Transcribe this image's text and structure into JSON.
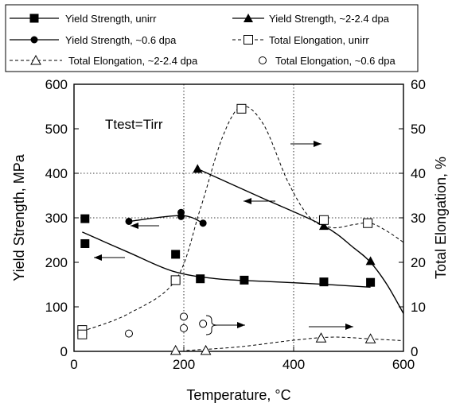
{
  "chart_data": {
    "type": "scatter",
    "xlabel": "Temperature, °C",
    "ylabel": "Yield Strength, MPa",
    "y2label": "Total Elongation, %",
    "xlim": [
      0,
      600
    ],
    "ylim": [
      0,
      600
    ],
    "y2lim": [
      0,
      60
    ],
    "xticks": [
      0,
      200,
      400,
      600
    ],
    "yticks": [
      0,
      100,
      200,
      300,
      400,
      500,
      600
    ],
    "y2ticks": [
      0,
      10,
      20,
      30,
      40,
      50,
      60
    ],
    "grid": "dotted vertical at 200 and 400; horizontal at 300 and 400",
    "annotation": "Ttest=Tirr",
    "legend": [
      {
        "id": "ys_unirr",
        "label": "Yield Strength, unirr"
      },
      {
        "id": "ys_2dpa",
        "label": "Yield Strength, ~2-2.4 dpa"
      },
      {
        "id": "ys_06dpa",
        "label": "Yield Strength, ~0.6 dpa"
      },
      {
        "id": "te_unirr",
        "label": "Total Elongation, unirr"
      },
      {
        "id": "te_2dpa",
        "label": "Total Elongation, ~2-2.4 dpa"
      },
      {
        "id": "te_06dpa",
        "label": "Total Elongation, ~0.6 dpa"
      }
    ],
    "series": [
      {
        "id": "ys_unirr",
        "axis": "left",
        "marker": "filled-square",
        "line": "solid",
        "points": [
          [
            20,
            298
          ],
          [
            20,
            242
          ],
          [
            185,
            218
          ],
          [
            230,
            163
          ],
          [
            310,
            160
          ],
          [
            455,
            156
          ],
          [
            540,
            155
          ]
        ],
        "fit": [
          [
            15,
            268
          ],
          [
            100,
            222
          ],
          [
            180,
            180
          ],
          [
            260,
            163
          ],
          [
            350,
            157
          ],
          [
            450,
            151
          ],
          [
            540,
            144
          ]
        ]
      },
      {
        "id": "ys_2dpa",
        "axis": "left",
        "marker": "filled-triangle",
        "line": "solid",
        "points": [
          [
            225,
            410
          ],
          [
            455,
            282
          ],
          [
            540,
            203
          ]
        ],
        "fit": [
          [
            225,
            410
          ],
          [
            340,
            346
          ],
          [
            455,
            282
          ],
          [
            510,
            232
          ],
          [
            540,
            200
          ],
          [
            570,
            150
          ],
          [
            600,
            85
          ]
        ]
      },
      {
        "id": "ys_06dpa",
        "axis": "left",
        "marker": "filled-circle",
        "line": "solid",
        "points": [
          [
            100,
            292
          ],
          [
            195,
            312
          ],
          [
            195,
            303
          ],
          [
            235,
            288
          ]
        ],
        "fit": [
          [
            100,
            292
          ],
          [
            195,
            305
          ],
          [
            235,
            288
          ]
        ]
      },
      {
        "id": "te_unirr",
        "axis": "right",
        "marker": "open-square",
        "line": "dashed",
        "points": [
          [
            15,
            4.8
          ],
          [
            15,
            3.8
          ],
          [
            185,
            16
          ],
          [
            305,
            54.5
          ],
          [
            455,
            29.5
          ],
          [
            535,
            28.8
          ]
        ],
        "fit": [
          [
            15,
            4.5
          ],
          [
            100,
            8.5
          ],
          [
            185,
            16
          ],
          [
            230,
            32
          ],
          [
            270,
            48
          ],
          [
            305,
            55
          ],
          [
            345,
            51
          ],
          [
            390,
            38
          ],
          [
            430,
            30
          ],
          [
            470,
            27.8
          ],
          [
            510,
            28.5
          ],
          [
            540,
            28.8
          ],
          [
            570,
            27
          ],
          [
            600,
            24.5
          ]
        ]
      },
      {
        "id": "te_2dpa",
        "axis": "right",
        "marker": "open-triangle",
        "line": "dashed",
        "points": [
          [
            185,
            0.2
          ],
          [
            240,
            0.2
          ],
          [
            450,
            3
          ],
          [
            540,
            2.8
          ]
        ],
        "fit": [
          [
            205,
            0.2
          ],
          [
            300,
            1
          ],
          [
            400,
            2.5
          ],
          [
            470,
            3.2
          ],
          [
            540,
            2.8
          ],
          [
            600,
            2.4
          ]
        ]
      },
      {
        "id": "te_06dpa",
        "axis": "right",
        "marker": "open-circle",
        "line": "none",
        "points": [
          [
            100,
            4
          ],
          [
            200,
            7.8
          ],
          [
            200,
            5.2
          ],
          [
            235,
            6.2
          ]
        ]
      }
    ]
  }
}
